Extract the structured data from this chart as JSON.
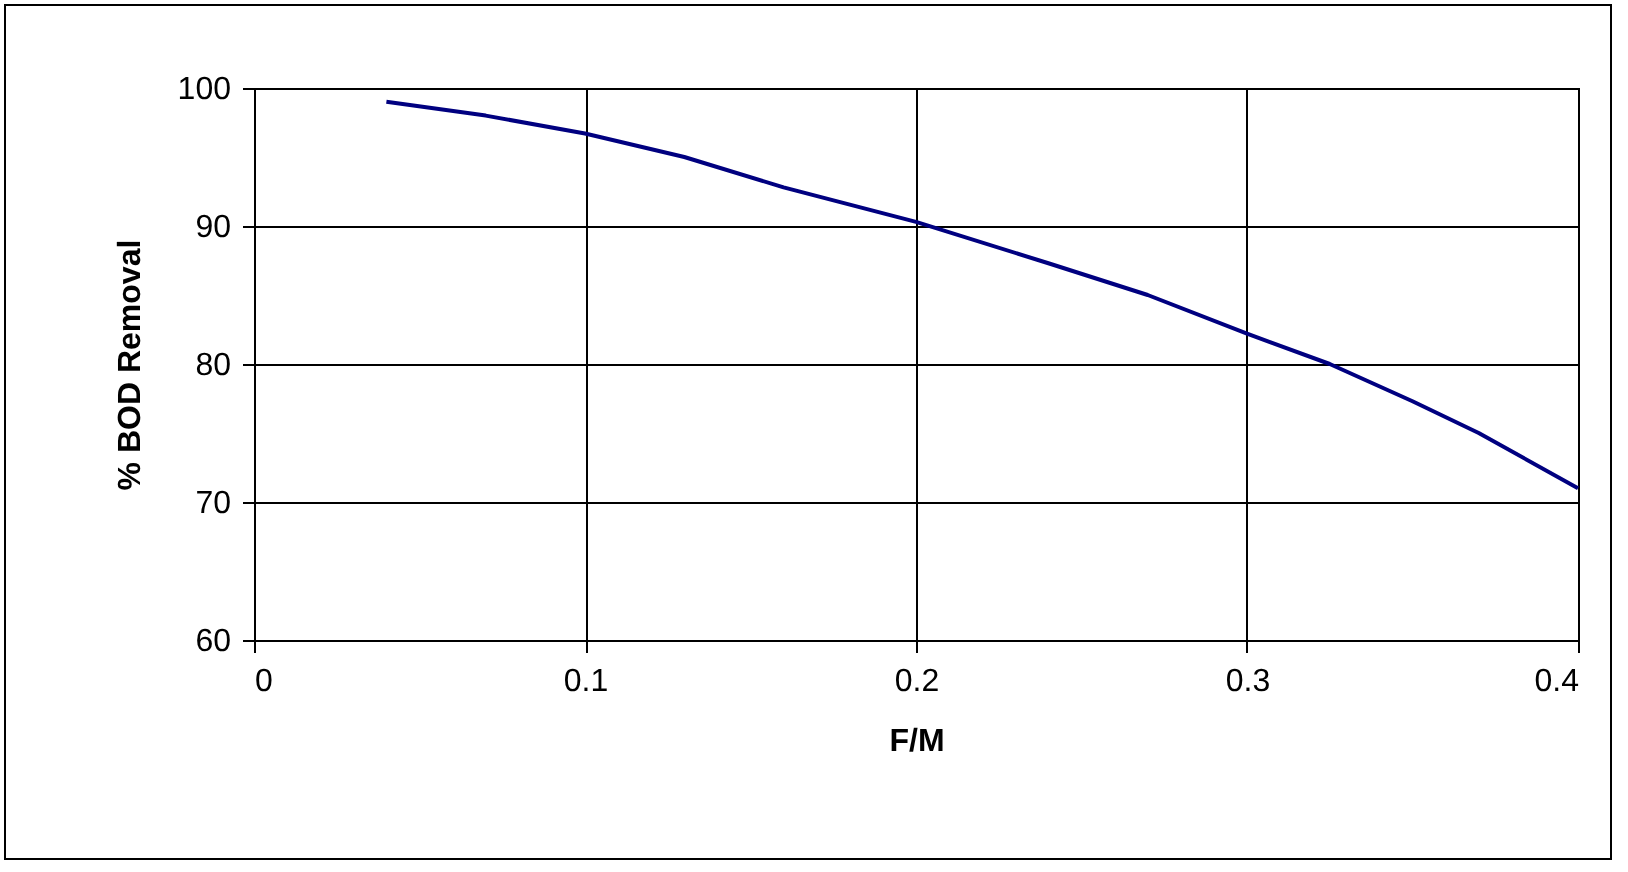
{
  "chart_data": {
    "type": "line",
    "xlabel": "F/M",
    "ylabel": "% BOD Removal",
    "x": [
      0.04,
      0.07,
      0.1,
      0.13,
      0.16,
      0.2,
      0.24,
      0.27,
      0.3,
      0.325,
      0.35,
      0.37,
      0.4
    ],
    "series": [
      {
        "color": "#000080",
        "values": [
          99,
          98,
          96.7,
          95,
          92.8,
          90.3,
          87.3,
          85,
          82.2,
          80,
          77.3,
          75,
          71
        ]
      }
    ],
    "xlim": [
      0,
      0.4
    ],
    "xticks": [
      0,
      0.1,
      0.2,
      0.3,
      0.4
    ],
    "ylim": [
      60,
      100
    ],
    "yticks": [
      60,
      70,
      80,
      90,
      100
    ],
    "grid": true,
    "marker": "none",
    "line_style": "solid"
  }
}
